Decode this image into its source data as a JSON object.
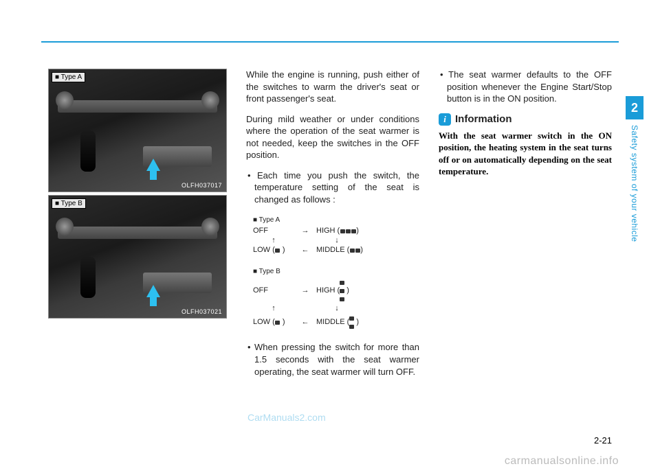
{
  "photos": {
    "a": {
      "label": "■ Type A",
      "code": "OLFH037017"
    },
    "b": {
      "label": "■ Type B",
      "code": "OLFH037021"
    }
  },
  "col2": {
    "p1": "While the engine is running, push either of the switches to warm the driver's seat or front passenger's seat.",
    "p2": "During mild weather or under conditions where the operation of the seat warmer is not needed, keep the switches in the OFF position.",
    "b1": "Each time you push the switch, the temperature setting of the seat is changed as follows :",
    "b2": "When pressing the switch for more than 1.5 seconds with the seat warmer operating, the seat warmer will turn OFF."
  },
  "diagrams": {
    "a": {
      "label": "■ Type A",
      "r1l": "OFF",
      "r1a": "→",
      "r1r_pre": "HIGH (",
      "r1r_post": ")",
      "midl": "↑",
      "midr": "↓",
      "r2l_pre": "LOW (",
      "r2l_post": " )",
      "r2a": "←",
      "r2r_pre": "MIDDLE (",
      "r2r_post": ")"
    },
    "b": {
      "label": "■ Type B",
      "r1l": "OFF",
      "r1a": "→",
      "r1r_pre": "HIGH  (",
      "r1r_post": ")",
      "midl": "↑",
      "midr": "↓",
      "r2l_pre": "LOW (",
      "r2l_post": " )",
      "r2a": "←",
      "r2r_pre": "MIDDLE (",
      "r2r_post": ")"
    }
  },
  "col3": {
    "b1": "The seat warmer defaults to the OFF position whenever the Engine Start/Stop button is in the ON posi­tion.",
    "info_title": "Information",
    "info_body": "With the seat warmer switch in the ON position, the heating system in the seat turns off or on automatically depending on the seat temperature."
  },
  "sidebar": {
    "chapter": "2",
    "title": "Safety system of your vehicle"
  },
  "page_number": "2-21",
  "watermark1": "CarManuals2.com",
  "watermark2": "carmanualsonline.info"
}
